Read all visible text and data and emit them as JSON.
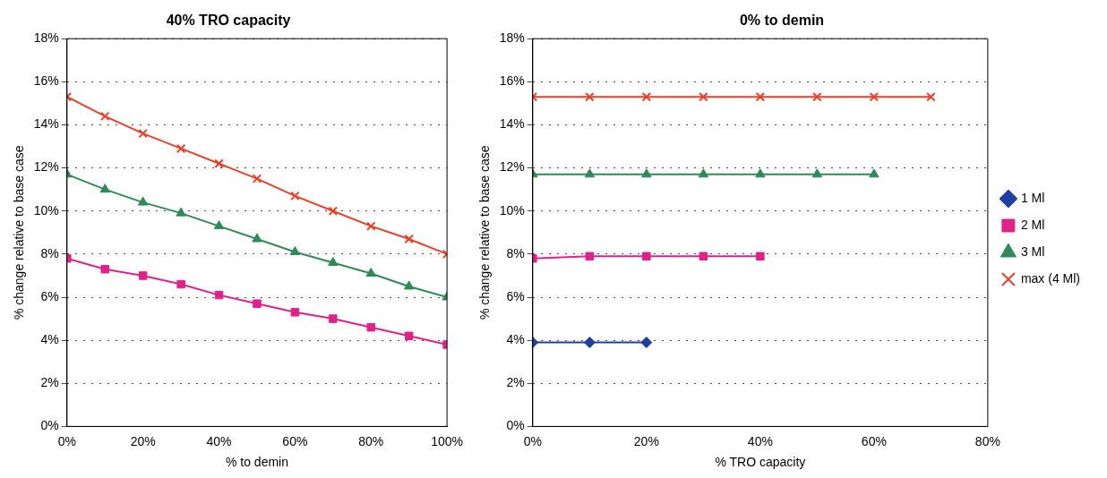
{
  "chart_data": [
    {
      "type": "line",
      "title": "40% TRO capacity",
      "xlabel": "% to demin",
      "ylabel": "% change relative to base case",
      "x": [
        0,
        10,
        20,
        30,
        40,
        50,
        60,
        70,
        80,
        90,
        100
      ],
      "series": [
        {
          "color": "#e0218a",
          "marker": "square",
          "values": [
            7.8,
            7.3,
            7.0,
            6.6,
            6.1,
            5.7,
            5.3,
            5.0,
            4.6,
            4.2,
            3.8
          ]
        },
        {
          "color": "#2e8b57",
          "marker": "triangle",
          "values": [
            11.7,
            11.0,
            10.4,
            9.9,
            9.3,
            8.7,
            8.1,
            7.6,
            7.1,
            6.5,
            6.0
          ]
        },
        {
          "color": "#e8402a",
          "marker": "cross",
          "values": [
            15.3,
            14.4,
            13.6,
            12.9,
            12.2,
            11.5,
            10.7,
            10.0,
            9.3,
            8.7,
            8.0
          ]
        }
      ],
      "xlim": [
        0,
        100
      ],
      "xticks": [
        {
          "value": 0,
          "label": "0%"
        },
        {
          "value": 20,
          "label": "20%"
        },
        {
          "value": 40,
          "label": "40%"
        },
        {
          "value": 60,
          "label": "60%"
        },
        {
          "value": 80,
          "label": "80%"
        },
        {
          "value": 100,
          "label": "100%"
        }
      ],
      "ylim": [
        0,
        18
      ],
      "yticks": [
        {
          "value": 0,
          "label": "0%"
        },
        {
          "value": 2,
          "label": "2%"
        },
        {
          "value": 4,
          "label": "4%"
        },
        {
          "value": 6,
          "label": "6%"
        },
        {
          "value": 8,
          "label": "8%"
        },
        {
          "value": 10,
          "label": "10%"
        },
        {
          "value": 12,
          "label": "12%"
        },
        {
          "value": 14,
          "label": "14%"
        },
        {
          "value": 16,
          "label": "16%"
        },
        {
          "value": 18,
          "label": "18%"
        }
      ],
      "grid": "y",
      "legend": false,
      "line_style": "solid"
    },
    {
      "type": "line",
      "title": "0% to demin",
      "xlabel": "% TRO capacity",
      "ylabel": "% change relative to base case",
      "series": [
        {
          "name": "1 Ml",
          "color": "#1f3fa8",
          "marker": "diamond",
          "x": [
            0,
            10,
            20
          ],
          "values": [
            3.9,
            3.9,
            3.9
          ]
        },
        {
          "name": "2 Ml",
          "color": "#e0218a",
          "marker": "square",
          "x": [
            0,
            10,
            20,
            30,
            40
          ],
          "values": [
            7.8,
            7.9,
            7.9,
            7.9,
            7.9
          ]
        },
        {
          "name": "3 Ml",
          "color": "#2e8b57",
          "marker": "triangle",
          "x": [
            0,
            10,
            20,
            30,
            40,
            50,
            60
          ],
          "values": [
            11.7,
            11.7,
            11.7,
            11.7,
            11.7,
            11.7,
            11.7
          ]
        },
        {
          "name": "max (4 Ml)",
          "color": "#e8402a",
          "marker": "cross",
          "x": [
            0,
            10,
            20,
            30,
            40,
            50,
            60,
            70
          ],
          "values": [
            15.3,
            15.3,
            15.3,
            15.3,
            15.3,
            15.3,
            15.3,
            15.3
          ]
        }
      ],
      "xlim": [
        0,
        80
      ],
      "xticks": [
        {
          "value": 0,
          "label": "0%"
        },
        {
          "value": 20,
          "label": "20%"
        },
        {
          "value": 40,
          "label": "40%"
        },
        {
          "value": 60,
          "label": "60%"
        },
        {
          "value": 80,
          "label": "80%"
        }
      ],
      "ylim": [
        0,
        18
      ],
      "yticks": [
        {
          "value": 0,
          "label": "0%"
        },
        {
          "value": 2,
          "label": "2%"
        },
        {
          "value": 4,
          "label": "4%"
        },
        {
          "value": 6,
          "label": "6%"
        },
        {
          "value": 8,
          "label": "8%"
        },
        {
          "value": 10,
          "label": "10%"
        },
        {
          "value": 12,
          "label": "12%"
        },
        {
          "value": 14,
          "label": "14%"
        },
        {
          "value": 16,
          "label": "16%"
        },
        {
          "value": 18,
          "label": "18%"
        }
      ],
      "grid": "y",
      "legend": "right",
      "line_style": "solid"
    }
  ]
}
